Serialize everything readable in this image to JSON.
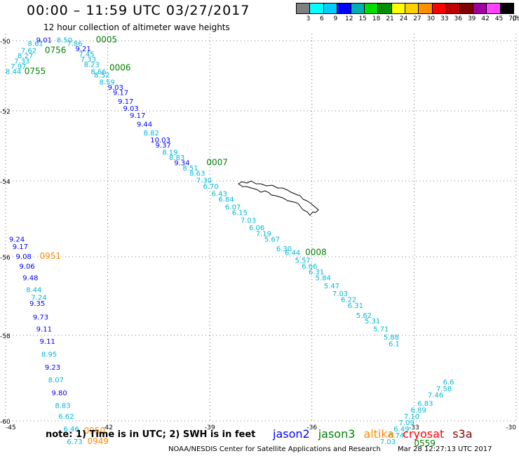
{
  "title": "00:00 – 11:59 UTC 03/27/2017",
  "subtitle": "12 hour collection of altimeter wave heights",
  "colorbar": {
    "colors": [
      "#808080",
      "#00ffff",
      "#00ccff",
      "#0000ff",
      "#00b0b0",
      "#00e000",
      "#009000",
      "#ffff00",
      "#ffd000",
      "#ff9000",
      "#ff0000",
      "#c00000",
      "#800000",
      "#a000a0",
      "#ff40ff",
      "#000000"
    ],
    "labels": [
      "3",
      "6",
      "9",
      "12",
      "15",
      "18",
      "21",
      "24",
      "27",
      "30",
      "33",
      "36",
      "39",
      "42",
      "45",
      "70",
      "(ft)"
    ]
  },
  "satellites": [
    {
      "name": "jason2",
      "color": "#0000ff"
    },
    {
      "name": "jason3",
      "color": "#008000"
    },
    {
      "name": "altika",
      "color": "#ff8c00"
    },
    {
      "name": "cryosat",
      "color": "#ff0000"
    },
    {
      "name": "s3a",
      "color": "#800000"
    }
  ],
  "footnote": "note: 1) Time is in UTC; 2) SWH is in feet",
  "credit": "NOAA/NESDIS Center for Satellite Applications and Research",
  "created": "Mar 28 12:27:13 UTC 2017",
  "map": {
    "lon_range": [
      -45,
      -30
    ],
    "lat_range": [
      -60,
      -50
    ],
    "lon_ticks": [
      -45,
      -42,
      -39,
      -36,
      -33,
      -30
    ],
    "lat_ticks": [
      -50,
      -52,
      -54,
      -56,
      -58,
      -60
    ],
    "land": "South Georgia Island"
  },
  "chart_data": {
    "type": "scatter",
    "title": "00:00 – 11:59 UTC 03/27/2017",
    "subtitle": "12 hour collection of altimeter wave heights",
    "xlabel": "",
    "ylabel": "",
    "xlim": [
      -45,
      -30
    ],
    "ylim": [
      -60,
      -50
    ],
    "units": "ft",
    "series": [
      {
        "name": "jason2",
        "color": "#0000ff",
        "values": [
          {
            "lon": -44.1,
            "lat": -50.05,
            "swh": "9.01"
          },
          {
            "lon": -44.9,
            "lat": -55.6,
            "swh": "9.24"
          },
          {
            "lon": -44.8,
            "lat": -55.8,
            "swh": "9.17"
          },
          {
            "lon": -44.7,
            "lat": -56.05,
            "swh": "9.08"
          },
          {
            "lon": -44.6,
            "lat": -56.3,
            "swh": "9.06"
          },
          {
            "lon": -44.5,
            "lat": -56.6,
            "swh": "9.48"
          },
          {
            "lon": -44.3,
            "lat": -57.25,
            "swh": "9.35"
          },
          {
            "lon": -44.2,
            "lat": -57.6,
            "swh": "9.73"
          },
          {
            "lon": -44.1,
            "lat": -57.9,
            "swh": "9.11"
          },
          {
            "lon": -44.0,
            "lat": -58.2,
            "swh": "9.11"
          },
          {
            "lon": -43.85,
            "lat": -58.8,
            "swh": "9.23"
          },
          {
            "lon": -43.65,
            "lat": -59.4,
            "swh": "9.80"
          },
          {
            "lon": -42.95,
            "lat": -50.3,
            "swh": "9.21"
          },
          {
            "lon": -42.0,
            "lat": -51.4,
            "swh": "9.03"
          },
          {
            "lon": -41.85,
            "lat": -51.55,
            "swh": "9.17"
          },
          {
            "lon": -41.7,
            "lat": -51.8,
            "swh": "9.17"
          },
          {
            "lon": -41.55,
            "lat": -52.0,
            "swh": "9.03"
          },
          {
            "lon": -41.35,
            "lat": -52.2,
            "swh": "9.17"
          },
          {
            "lon": -41.15,
            "lat": -52.45,
            "swh": "9.44"
          },
          {
            "lon": -40.75,
            "lat": -52.9,
            "swh": "10.03"
          },
          {
            "lon": -40.6,
            "lat": -53.05,
            "swh": "9.37"
          },
          {
            "lon": -40.05,
            "lat": -53.55,
            "swh": "9.34"
          }
        ]
      },
      {
        "name": "jason2-cyan",
        "color": "#00b8d8",
        "values": [
          {
            "lon": -44.35,
            "lat": -50.15,
            "swh": "8.61"
          },
          {
            "lon": -44.55,
            "lat": -50.35,
            "swh": "7.62"
          },
          {
            "lon": -44.65,
            "lat": -50.5,
            "swh": "8.27"
          },
          {
            "lon": -44.75,
            "lat": -50.65,
            "swh": "7.33"
          },
          {
            "lon": -44.85,
            "lat": -50.8,
            "swh": "7.97"
          },
          {
            "lon": -45.0,
            "lat": -50.95,
            "swh": "8.44"
          },
          {
            "lon": -43.5,
            "lat": -50.05,
            "swh": "8.50"
          },
          {
            "lon": -43.2,
            "lat": -50.15,
            "swh": "7.86"
          },
          {
            "lon": -42.85,
            "lat": -50.45,
            "swh": "7.45"
          },
          {
            "lon": -42.8,
            "lat": -50.6,
            "swh": "7.33"
          },
          {
            "lon": -42.7,
            "lat": -50.75,
            "swh": "8.23"
          },
          {
            "lon": -42.5,
            "lat": -50.95,
            "swh": "8.66"
          },
          {
            "lon": -42.4,
            "lat": -51.05,
            "swh": "8.52"
          },
          {
            "lon": -42.25,
            "lat": -51.25,
            "swh": "8.59"
          },
          {
            "lon": -40.95,
            "lat": -52.7,
            "swh": "8.82"
          },
          {
            "lon": -40.4,
            "lat": -53.25,
            "swh": "8.19"
          },
          {
            "lon": -40.2,
            "lat": -53.4,
            "swh": "8.83"
          },
          {
            "lon": -39.8,
            "lat": -53.7,
            "swh": "8.51"
          },
          {
            "lon": -39.6,
            "lat": -53.85,
            "swh": "8.63"
          },
          {
            "lon": -39.4,
            "lat": -54.05,
            "swh": "7.30"
          },
          {
            "lon": -39.2,
            "lat": -54.2,
            "swh": "6.70"
          },
          {
            "lon": -38.95,
            "lat": -54.4,
            "swh": "6.43"
          },
          {
            "lon": -38.75,
            "lat": -54.55,
            "swh": "6.84"
          },
          {
            "lon": -38.55,
            "lat": -54.75,
            "swh": "6.07"
          },
          {
            "lon": -38.35,
            "lat": -54.9,
            "swh": "6.15"
          },
          {
            "lon": -38.1,
            "lat": -55.1,
            "swh": "7.03"
          },
          {
            "lon": -37.85,
            "lat": -55.3,
            "swh": "6.06"
          },
          {
            "lon": -37.65,
            "lat": -55.45,
            "swh": "7.19"
          },
          {
            "lon": -37.4,
            "lat": -55.6,
            "swh": "5.67"
          },
          {
            "lon": -37.05,
            "lat": -55.85,
            "swh": "6.30"
          },
          {
            "lon": -36.8,
            "lat": -55.95,
            "swh": "6.44"
          },
          {
            "lon": -36.5,
            "lat": -56.15,
            "swh": "5.57"
          },
          {
            "lon": -36.3,
            "lat": -56.3,
            "swh": "6.66"
          },
          {
            "lon": -36.1,
            "lat": -56.45,
            "swh": "6.31"
          },
          {
            "lon": -35.9,
            "lat": -56.6,
            "swh": "5.84"
          },
          {
            "lon": -35.65,
            "lat": -56.8,
            "swh": "5.47"
          },
          {
            "lon": -35.4,
            "lat": -57.0,
            "swh": "7.03"
          },
          {
            "lon": -35.15,
            "lat": -57.15,
            "swh": "6.22"
          },
          {
            "lon": -34.95,
            "lat": -57.3,
            "swh": "6.31"
          },
          {
            "lon": -34.7,
            "lat": -57.55,
            "swh": "5.62"
          },
          {
            "lon": -34.45,
            "lat": -57.7,
            "swh": "5.31"
          },
          {
            "lon": -34.2,
            "lat": -57.9,
            "swh": "5.71"
          },
          {
            "lon": -33.9,
            "lat": -58.1,
            "swh": "5.88"
          },
          {
            "lon": -33.75,
            "lat": -58.25,
            "swh": "6.1"
          },
          {
            "lon": -44.4,
            "lat": -56.9,
            "swh": "8.44"
          },
          {
            "lon": -44.25,
            "lat": -57.1,
            "swh": "7.24"
          },
          {
            "lon": -43.95,
            "lat": -58.5,
            "swh": "8.95"
          },
          {
            "lon": -43.75,
            "lat": -59.1,
            "swh": "8.07"
          },
          {
            "lon": -43.55,
            "lat": -59.7,
            "swh": "8.83"
          },
          {
            "lon": -43.45,
            "lat": -59.95,
            "swh": "6.62"
          },
          {
            "lon": -43.3,
            "lat": -60.25,
            "swh": "6.46"
          },
          {
            "lon": -43.2,
            "lat": -60.55,
            "swh": "6.73"
          },
          {
            "lon": -34.0,
            "lat": -60.55,
            "swh": "7.03"
          },
          {
            "lon": -33.75,
            "lat": -60.4,
            "swh": "6.74"
          },
          {
            "lon": -33.6,
            "lat": -60.25,
            "swh": "6.49"
          },
          {
            "lon": -33.45,
            "lat": -60.1,
            "swh": "7.09"
          },
          {
            "lon": -33.3,
            "lat": -59.95,
            "swh": "7.10"
          },
          {
            "lon": -33.1,
            "lat": -59.8,
            "swh": "6.89"
          },
          {
            "lon": -32.9,
            "lat": -59.65,
            "swh": "6.83"
          },
          {
            "lon": -32.6,
            "lat": -59.45,
            "swh": "7.46"
          },
          {
            "lon": -32.35,
            "lat": -59.3,
            "swh": "7.58"
          },
          {
            "lon": -32.15,
            "lat": -59.15,
            "swh": "6.6"
          }
        ]
      }
    ],
    "time_labels": [
      {
        "lon": -43.85,
        "lat": -50.35,
        "time": "0756",
        "color": "#008000"
      },
      {
        "lon": -44.45,
        "lat": -50.95,
        "time": "0755",
        "color": "#008000"
      },
      {
        "lon": -42.35,
        "lat": -50.05,
        "time": "0005",
        "color": "#008000"
      },
      {
        "lon": -41.95,
        "lat": -50.85,
        "time": "0006",
        "color": "#008000"
      },
      {
        "lon": -39.1,
        "lat": -53.55,
        "time": "0007",
        "color": "#008000"
      },
      {
        "lon": -36.2,
        "lat": -55.95,
        "time": "0008",
        "color": "#008000"
      },
      {
        "lon": -44.0,
        "lat": -56.05,
        "time": "0951",
        "color": "#ff8c00"
      },
      {
        "lon": -42.7,
        "lat": -60.3,
        "time": "0950",
        "color": "#ff8c00"
      },
      {
        "lon": -42.6,
        "lat": -60.55,
        "time": "0949",
        "color": "#ff8c00"
      },
      {
        "lon": -33.0,
        "lat": -60.6,
        "time": "0559",
        "color": "#008000"
      }
    ]
  }
}
